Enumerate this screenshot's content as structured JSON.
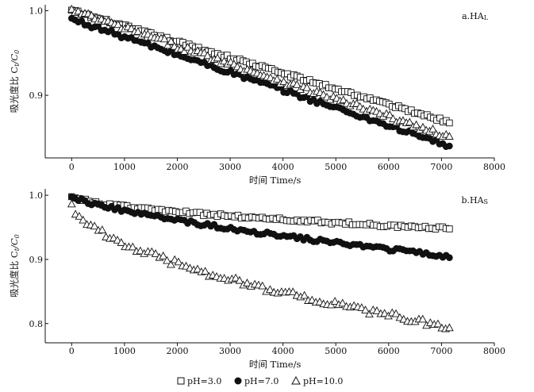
{
  "chart_data": [
    {
      "type": "scatter",
      "panel_label": "a.HA",
      "panel_label_sub": "L",
      "xlabel": "时间 Time/s",
      "ylabel": "吸光度比 C",
      "ylabel_sub1": "t",
      "ylabel_mid": "/C",
      "ylabel_sub2": "0",
      "xlim": [
        -500,
        8000
      ],
      "ylim": [
        0.826,
        1.007
      ],
      "xticks": [
        0,
        1000,
        2000,
        3000,
        4000,
        5000,
        6000,
        7000,
        8000
      ],
      "xtick_labels": [
        "0",
        "1000",
        "2000",
        "3000",
        "4000",
        "5000",
        "6000",
        "7000",
        "8000"
      ],
      "yticks": [
        0.9,
        1.0
      ],
      "ytick_labels": [
        "0.9",
        "1.0"
      ],
      "grid": false,
      "series": [
        {
          "name": "pH=3.0",
          "marker": "open-square",
          "t": [
            0,
            7150
          ],
          "y0": 1.0,
          "y1": 0.868,
          "shape": 1.0,
          "noise": 0.002,
          "n": 120
        },
        {
          "name": "pH=7.0",
          "marker": "filled-circle",
          "t": [
            0,
            7150
          ],
          "y0": 0.99,
          "y1": 0.84,
          "shape": 1.0,
          "noise": 0.0025,
          "n": 115
        },
        {
          "name": "pH=10.0",
          "marker": "open-triangle",
          "t": [
            0,
            7150
          ],
          "y0": 1.0,
          "y1": 0.85,
          "shape": 1.0,
          "noise": 0.0035,
          "n": 115
        }
      ]
    },
    {
      "type": "scatter",
      "panel_label": "b.HA",
      "panel_label_sub": "S",
      "xlabel": "时间 Time/s",
      "ylabel": "吸光度比 C",
      "ylabel_sub1": "t",
      "ylabel_mid": "/C",
      "ylabel_sub2": "0",
      "xlim": [
        -500,
        8000
      ],
      "ylim": [
        0.77,
        1.01
      ],
      "xticks": [
        0,
        1000,
        2000,
        3000,
        4000,
        5000,
        6000,
        7000,
        8000
      ],
      "xtick_labels": [
        "0",
        "1000",
        "2000",
        "3000",
        "4000",
        "5000",
        "6000",
        "7000",
        "8000"
      ],
      "yticks": [
        0.8,
        0.9,
        1.0
      ],
      "ytick_labels": [
        "0.8",
        "0.9",
        "1.0"
      ],
      "grid": false,
      "series": [
        {
          "name": "pH=3.0",
          "marker": "open-square",
          "t": [
            0,
            7150
          ],
          "y0": 1.0,
          "y1": 0.948,
          "shape": 0.55,
          "noise": 0.0025,
          "n": 110
        },
        {
          "name": "pH=7.0",
          "marker": "filled-circle",
          "t": [
            0,
            7150
          ],
          "y0": 1.0,
          "y1": 0.905,
          "shape": 0.7,
          "noise": 0.003,
          "n": 115
        },
        {
          "name": "pH=10.0",
          "marker": "open-triangle",
          "t": [
            0,
            7150
          ],
          "y0": 0.99,
          "y1": 0.795,
          "shape": 0.55,
          "noise": 0.005,
          "n": 100
        }
      ]
    }
  ],
  "legend": {
    "placement": "bottom-center",
    "items": [
      {
        "label": "pH=3.0",
        "marker": "open-square"
      },
      {
        "label": "pH=7.0",
        "marker": "filled-circle"
      },
      {
        "label": "pH=10.0",
        "marker": "open-triangle"
      }
    ]
  },
  "colors": {
    "ink": "#111111",
    "background": "#ffffff"
  }
}
